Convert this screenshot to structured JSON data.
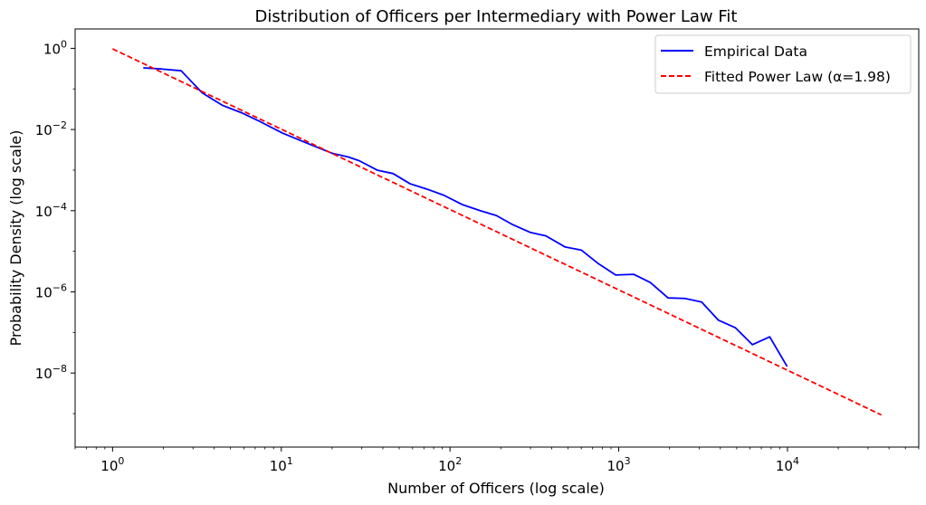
{
  "chart_data": {
    "type": "line",
    "title": "Distribution of Officers per Intermediary with Power Law Fit",
    "xlabel": "Number of Officers (log scale)",
    "ylabel": "Probability Density (log scale)",
    "x_scale": "log",
    "y_scale": "log",
    "xlim": [
      0.6,
      60000
    ],
    "ylim": [
      1.5e-10,
      3
    ],
    "x_ticks": [
      {
        "value": 1,
        "base": "10",
        "exp": "0"
      },
      {
        "value": 10,
        "base": "10",
        "exp": "1"
      },
      {
        "value": 100,
        "base": "10",
        "exp": "2"
      },
      {
        "value": 1000,
        "base": "10",
        "exp": "3"
      },
      {
        "value": 10000,
        "base": "10",
        "exp": "4"
      }
    ],
    "y_ticks": [
      {
        "value": 1,
        "base": "10",
        "exp": "0"
      },
      {
        "value": 0.01,
        "base": "10",
        "exp": "−2"
      },
      {
        "value": 0.0001,
        "base": "10",
        "exp": "−4"
      },
      {
        "value": 1e-06,
        "base": "10",
        "exp": "−6"
      },
      {
        "value": 1e-08,
        "base": "10",
        "exp": "−8"
      }
    ],
    "grid": false,
    "legend_position": "top-right",
    "series": [
      {
        "name": "Empirical Data",
        "color": "#0000ff",
        "style": "solid",
        "points": [
          [
            1.52,
            0.33
          ],
          [
            1.95,
            0.31
          ],
          [
            2.55,
            0.28
          ],
          [
            3.4,
            0.08
          ],
          [
            4.5,
            0.039
          ],
          [
            5.8,
            0.026
          ],
          [
            7.2,
            0.017
          ],
          [
            10.2,
            0.0081
          ],
          [
            14.8,
            0.0043
          ],
          [
            20,
            0.0026
          ],
          [
            25,
            0.0021
          ],
          [
            29,
            0.0017
          ],
          [
            37,
            0.001
          ],
          [
            46,
            0.00082
          ],
          [
            58,
            0.00046
          ],
          [
            73,
            0.00034
          ],
          [
            92,
            0.00024
          ],
          [
            118,
            0.000142
          ],
          [
            150,
            0.000101
          ],
          [
            188,
            7.6e-05
          ],
          [
            236,
            4.5e-05
          ],
          [
            300,
            2.9e-05
          ],
          [
            370,
            2.4e-05
          ],
          [
            480,
            1.28e-05
          ],
          [
            600,
            1.07e-05
          ],
          [
            760,
            4.9e-06
          ],
          [
            960,
            2.6e-06
          ],
          [
            1230,
            2.7e-06
          ],
          [
            1540,
            1.7e-06
          ],
          [
            1960,
            7.1e-07
          ],
          [
            2470,
            6.9e-07
          ],
          [
            3100,
            5.6e-07
          ],
          [
            3900,
            2e-07
          ],
          [
            4920,
            1.3e-07
          ],
          [
            6200,
            5e-08
          ],
          [
            7850,
            7.8e-08
          ],
          [
            9950,
            1.45e-08
          ]
        ]
      },
      {
        "name": "Fitted Power Law (α=1.98)",
        "color": "#ff0000",
        "style": "dashed",
        "points": [
          [
            1,
            0.97
          ],
          [
            36000,
            9.3e-10
          ]
        ]
      }
    ]
  }
}
